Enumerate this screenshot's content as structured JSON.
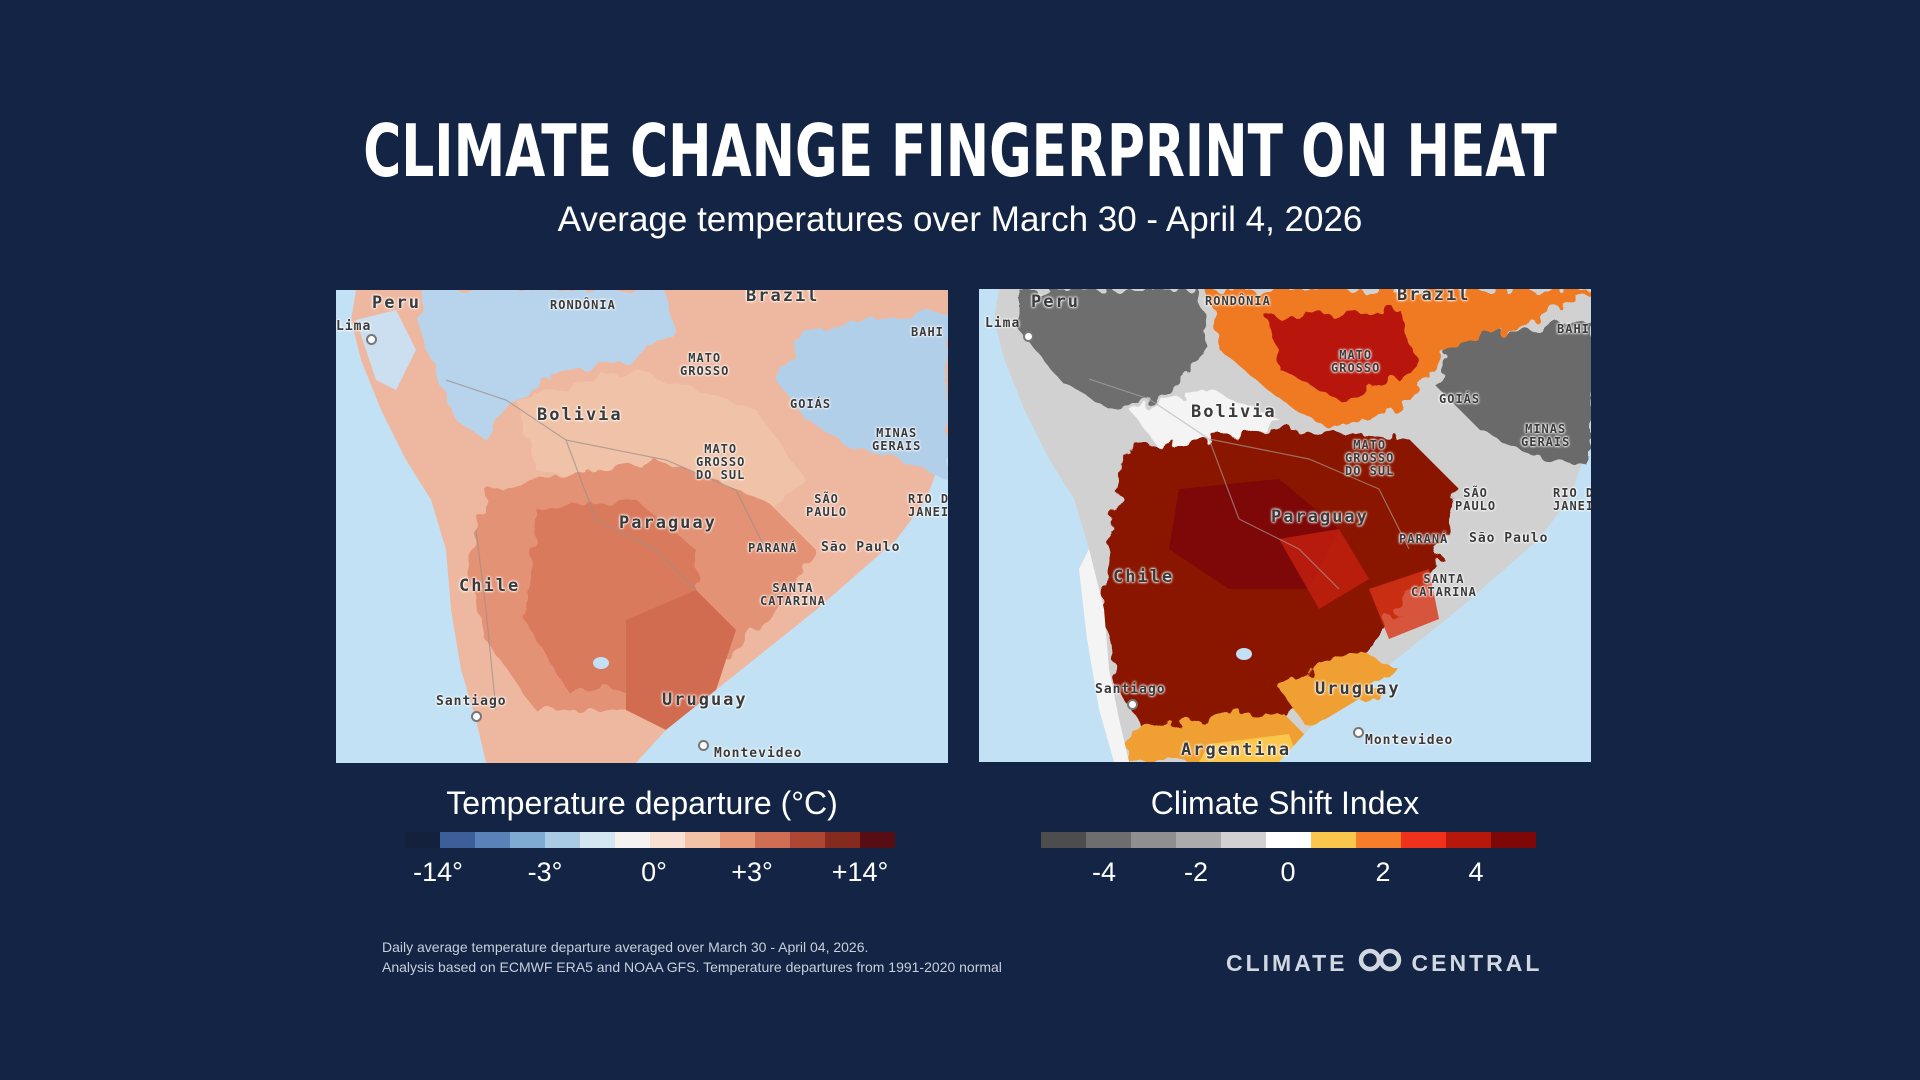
{
  "title": "CLIMATE CHANGE FINGERPRINT ON HEAT",
  "subtitle": "Average temperatures over March 30 - April 4, 2026",
  "maps": {
    "labels": {
      "peru": "Peru",
      "brazil": "Brazil",
      "rondonia": "RONDÔNIA",
      "lima": "Lima",
      "bahia": "BAHI",
      "mato_grosso": "MATO\nGROSSO",
      "goias": "GOIÁS",
      "bolivia": "Bolivia",
      "minas_gerais": "MINAS\nGERAIS",
      "mato_grosso_do_sul": "MATO\nGROSSO\nDO SUL",
      "sao_paulo_state": "SÃO\nPAULO",
      "rio_de_janeiro": "RIO D\nJANEI",
      "paraguay": "Paraguay",
      "parana": "PARANÁ",
      "sao_paulo_city": "São Paulo",
      "chile": "Chile",
      "santa_catarina": "SANTA\nCATARINA",
      "santiago": "Santiago",
      "uruguay": "Uruguay",
      "montevideo": "Montevideo",
      "argentina": "Argentina"
    }
  },
  "legend_left": {
    "title": "Temperature departure (°C)",
    "colors": [
      "#14213d",
      "#3c5f99",
      "#5a82b8",
      "#7faad2",
      "#a9cbe6",
      "#d5e6f3",
      "#f5f2f1",
      "#f8e0d2",
      "#f4c2a6",
      "#e89a78",
      "#cf6e52",
      "#ad4632",
      "#852a1f",
      "#560e14"
    ],
    "ticks": [
      "-14°",
      "-3°",
      "0°",
      "+3°",
      "+14°"
    ]
  },
  "legend_right": {
    "title": "Climate Shift Index",
    "colors": [
      "#4d4d4d",
      "#6e6e6e",
      "#8f8f8f",
      "#ababab",
      "#d1d1d1",
      "#ffffff",
      "#fbc64c",
      "#f77d2a",
      "#f0321c",
      "#b8170c",
      "#7e0808"
    ],
    "ticks": [
      "-4",
      "-2",
      "0",
      "2",
      "4"
    ]
  },
  "footnote": {
    "line1": "Daily average temperature departure averaged over March 30 - April 04, 2026.",
    "line2": "Analysis based on ECMWF ERA5 and NOAA GFS. Temperature departures from 1991-2020 normal"
  },
  "logo": {
    "left_text": "CLIMATE",
    "right_text": "CENTRAL",
    "icon": "infinity-icon"
  }
}
